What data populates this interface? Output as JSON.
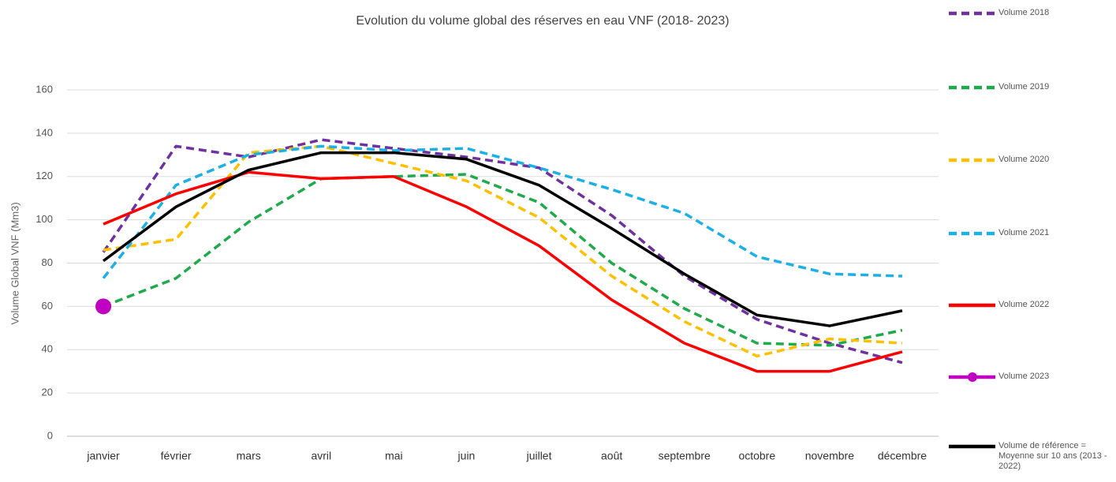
{
  "chart_data": {
    "type": "line",
    "title": "Evolution du volume global des réserves en eau VNF (2018- 2023)",
    "y_label": "Volume Global VNF (Mm3)",
    "categories": [
      "janvier",
      "février",
      "mars",
      "avril",
      "mai",
      "juin",
      "juillet",
      "août",
      "septembre",
      "octobre",
      "novembre",
      "décembre"
    ],
    "ylim": [
      0,
      160
    ],
    "yticks": [
      0,
      20,
      40,
      60,
      80,
      100,
      120,
      140,
      160
    ],
    "grid": true,
    "legend": "right",
    "series": [
      {
        "name": "Volume 2018",
        "color": "#7030a0",
        "dashed": true,
        "values": [
          85,
          134,
          129,
          137,
          133,
          129,
          124,
          102,
          74,
          54,
          43,
          34
        ]
      },
      {
        "name": "Volume 2019",
        "color": "#1faa4b",
        "dashed": true,
        "values": [
          60,
          73,
          99,
          119,
          120,
          121,
          108,
          80,
          59,
          43,
          42,
          49
        ]
      },
      {
        "name": "Volume 2020",
        "color": "#ffc000",
        "dashed": true,
        "values": [
          86,
          91,
          131,
          134,
          126,
          118,
          101,
          74,
          53,
          37,
          45,
          43
        ]
      },
      {
        "name": "Volume 2021",
        "color": "#1cb0e8",
        "dashed": true,
        "values": [
          73,
          116,
          130,
          134,
          132,
          133,
          124,
          114,
          103,
          83,
          75,
          74
        ]
      },
      {
        "name": "Volume 2022",
        "color": "#ff0000",
        "dashed": false,
        "values": [
          98,
          112,
          122,
          119,
          120,
          106,
          88,
          63,
          43,
          30,
          30,
          39
        ]
      },
      {
        "name": "Volume 2023",
        "color": "#c000c0",
        "dashed": false,
        "marker": "circle",
        "values": [
          60,
          null,
          null,
          null,
          null,
          null,
          null,
          null,
          null,
          null,
          null,
          null
        ]
      },
      {
        "name": "Volume de référence = Moyenne sur 10 ans (2013 - 2022)",
        "color": "#000000",
        "dashed": false,
        "values": [
          81,
          106,
          123,
          131,
          131,
          128,
          116,
          96,
          75,
          56,
          51,
          58
        ]
      }
    ]
  }
}
